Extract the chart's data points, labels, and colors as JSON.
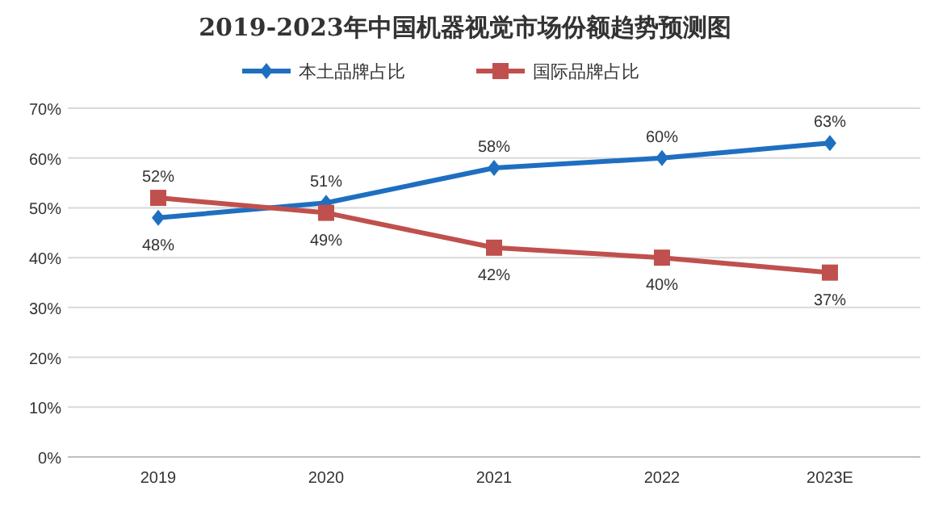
{
  "chart_data": {
    "type": "line",
    "title": "2019-2023年中国机器视觉市场份额趋势预测图",
    "categories": [
      "2019",
      "2020",
      "2021",
      "2022",
      "2023E"
    ],
    "series": [
      {
        "name": "本土品牌占比",
        "color": "#1f6fc0",
        "marker": "diamond",
        "values": [
          48,
          51,
          58,
          60,
          63
        ],
        "value_labels": [
          "48%",
          "51%",
          "58%",
          "60%",
          "63%"
        ]
      },
      {
        "name": "国际品牌占比",
        "color": "#c0504d",
        "marker": "square",
        "values": [
          52,
          49,
          42,
          40,
          37
        ],
        "value_labels": [
          "52%",
          "49%",
          "42%",
          "40%",
          "37%"
        ]
      }
    ],
    "ylim": [
      0,
      70
    ],
    "yticks": [
      {
        "value": 0,
        "label": "0%"
      },
      {
        "value": 10,
        "label": "10%"
      },
      {
        "value": 20,
        "label": "20%"
      },
      {
        "value": 30,
        "label": "30%"
      },
      {
        "value": 40,
        "label": "40%"
      },
      {
        "value": 50,
        "label": "50%"
      },
      {
        "value": 60,
        "label": "60%"
      },
      {
        "value": 70,
        "label": "70%"
      }
    ],
    "grid": "y",
    "legend": "top"
  }
}
